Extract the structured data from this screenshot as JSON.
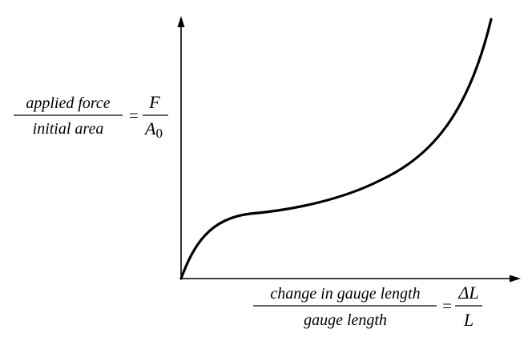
{
  "diagram": {
    "y_label": {
      "numerator": "applied force",
      "denominator": "initial area",
      "equals": "=",
      "symbol_numerator": "F",
      "symbol_denominator": "A",
      "symbol_subscript": "0"
    },
    "x_label": {
      "numerator": "change in gauge length",
      "denominator": "gauge length",
      "equals": "=",
      "symbol_numerator": "ΔL",
      "symbol_denominator": "L"
    },
    "colors": {
      "ink": "#000000",
      "background": "#ffffff"
    }
  }
}
